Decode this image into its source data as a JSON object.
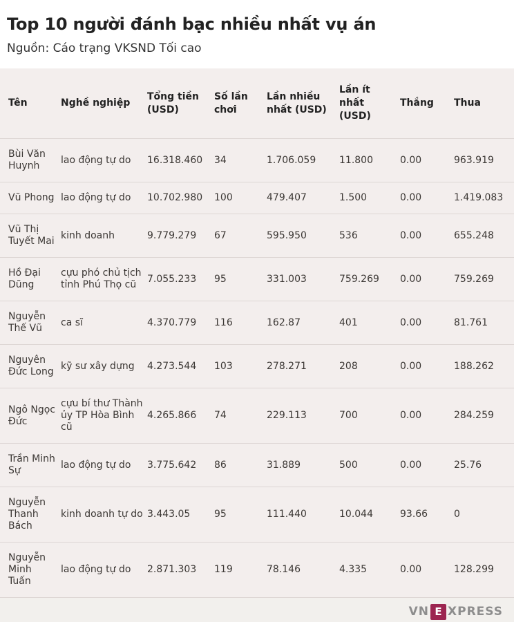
{
  "header": {
    "title": "Top 10 người đánh bạc nhiều nhất vụ án",
    "source": "Nguồn: Cáo trạng VKSND Tối cao"
  },
  "chart_data": {
    "type": "table",
    "title": "Top 10 người đánh bạc nhiều nhất vụ án",
    "columns": [
      {
        "key": "name",
        "label": "Tên"
      },
      {
        "key": "occupation",
        "label": "Nghề nghiệp"
      },
      {
        "key": "total-usd",
        "label": "Tổng tiền (USD)"
      },
      {
        "key": "times-played",
        "label": "Số lần chơi"
      },
      {
        "key": "max-usd",
        "label": "Lần nhiều nhất (USD)"
      },
      {
        "key": "min-usd",
        "label": "Lần ít nhất (USD)"
      },
      {
        "key": "win",
        "label": "Thắng"
      },
      {
        "key": "loss",
        "label": "Thua"
      }
    ],
    "rows": [
      [
        "Bùi Văn Huynh",
        "lao động tự do",
        "16.318.460",
        "34",
        "1.706.059",
        "11.800",
        "0.00",
        "963.919"
      ],
      [
        "Vũ Phong",
        "lao động tự do",
        "10.702.980",
        "100",
        "479.407",
        "1.500",
        "0.00",
        "1.419.083"
      ],
      [
        "Vũ Thị Tuyết Mai",
        "kinh doanh",
        "9.779.279",
        "67",
        "595.950",
        "536",
        "0.00",
        "655.248"
      ],
      [
        "Hồ Đại Dũng",
        "cựu phó chủ tịch tỉnh Phú Thọ cũ",
        "7.055.233",
        "95",
        "331.003",
        "759.269",
        "0.00",
        "759.269"
      ],
      [
        "Nguyễn Thế Vũ",
        "ca sĩ",
        "4.370.779",
        "116",
        "162.87",
        "401",
        "0.00",
        "81.761"
      ],
      [
        "Nguyên Đức Long",
        "kỹ sư xây dựng",
        "4.273.544",
        "103",
        "278.271",
        "208",
        "0.00",
        "188.262"
      ],
      [
        "Ngô Ngọc Đức",
        "cựu bí thư Thành ủy TP Hòa Bình cũ",
        "4.265.866",
        "74",
        "229.113",
        "700",
        "0.00",
        "284.259"
      ],
      [
        "Trần Minh Sự",
        "lao động tự do",
        "3.775.642",
        "86",
        "31.889",
        "500",
        "0.00",
        "25.76"
      ],
      [
        "Nguyễn Thanh Bách",
        "kinh doanh tự do",
        "3.443.05",
        "95",
        "111.440",
        "10.044",
        "93.66",
        "0"
      ],
      [
        "Nguyễn Minh Tuấn",
        "lao động tự do",
        "2.871.303",
        "119",
        "78.146",
        "4.335",
        "0.00",
        "128.299"
      ]
    ]
  },
  "footer": {
    "logo": {
      "prefix": "VN",
      "boxed_letter": "E",
      "suffix": "XPRESS",
      "box_color": "#9c2550",
      "text_color": "#8d8d8d"
    }
  },
  "colors": {
    "page_background": "#f3eeed",
    "header_background": "#ffffff",
    "row_divider": "#ddd6d4",
    "body_text": "#3c3835",
    "heading_text": "#222222"
  }
}
